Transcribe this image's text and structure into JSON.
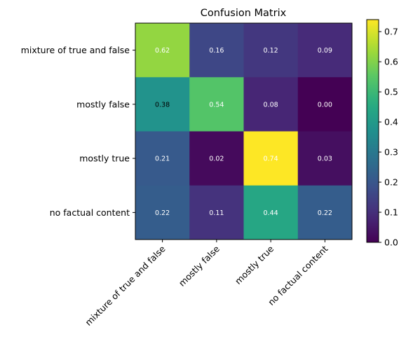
{
  "chart_data": {
    "type": "heatmap",
    "title": "Confusion Matrix",
    "xlabel": "",
    "ylabel": "",
    "row_labels": [
      "mixture of true and false",
      "mostly false",
      "mostly true",
      "no factual content"
    ],
    "col_labels": [
      "mixture of true and false",
      "mostly false",
      "mostly true",
      "no factual content"
    ],
    "values": [
      [
        0.62,
        0.16,
        0.12,
        0.09
      ],
      [
        0.38,
        0.54,
        0.08,
        0.0
      ],
      [
        0.21,
        0.02,
        0.74,
        0.03
      ],
      [
        0.22,
        0.11,
        0.44,
        0.22
      ]
    ],
    "colormap": "viridis",
    "color_range": [
      0,
      0.74
    ],
    "colorbar": {
      "ticks": [
        0.0,
        0.1,
        0.2,
        0.3,
        0.4,
        0.5,
        0.6,
        0.7
      ],
      "tick_labels": [
        "0.0",
        "0.1",
        "0.2",
        "0.3",
        "0.4",
        "0.5",
        "0.6",
        "0.7"
      ]
    },
    "annotation_format": "0.00",
    "text_colors": {
      "light": "#ffffff",
      "dark": "#000000"
    },
    "grid": false
  }
}
